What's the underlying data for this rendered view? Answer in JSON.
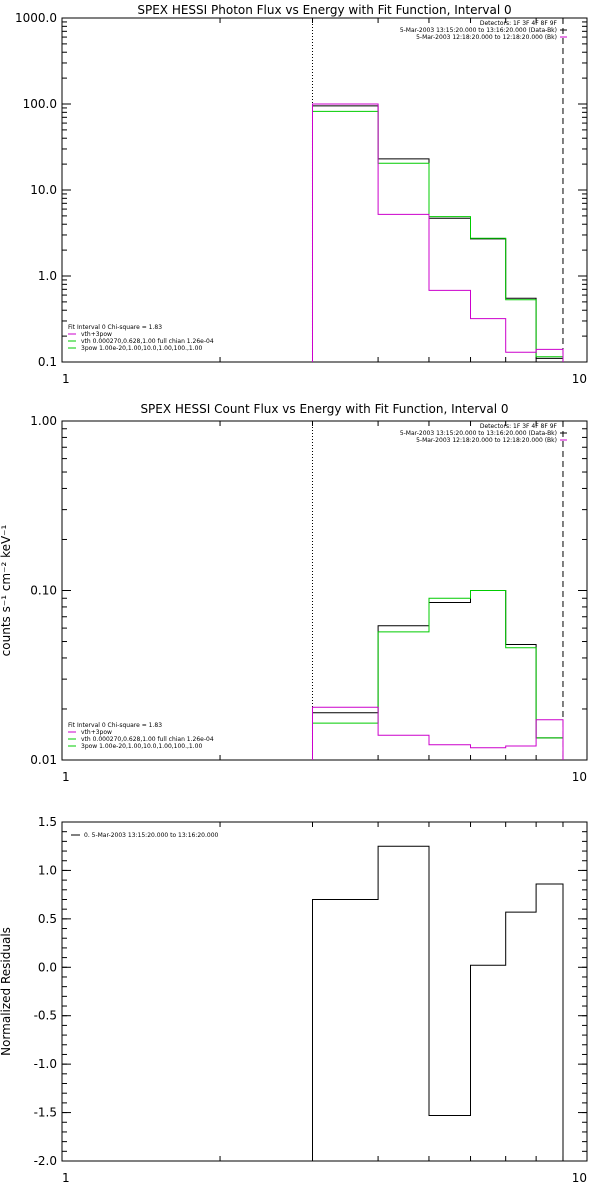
{
  "chart_data": [
    {
      "type": "line",
      "title": "SPEX HESSI Photon Flux vs Energy with Fit Function, Interval 0",
      "xlabel": "",
      "ylabel": "",
      "xscale": "log",
      "yscale": "log",
      "xlim": [
        1,
        10
      ],
      "ylim": [
        0.1,
        1000
      ],
      "xticks": [
        1,
        10
      ],
      "xtick_labels": [
        "1",
        "10"
      ],
      "yticks": [
        0.1,
        1,
        10,
        100,
        1000
      ],
      "ytick_labels": [
        "0.1",
        "1.0",
        "10.0",
        "100.0",
        "1000.0"
      ],
      "vlines": [
        {
          "x": 3,
          "style": "dotted"
        },
        {
          "x": 9,
          "style": "dashed"
        }
      ],
      "header_text": [
        {
          "text": "Detectors: 1F 3F 4F 8F 9F",
          "color": ""
        },
        {
          "text": "5-Mar-2003 13:15:20.000 to 13:16:20.000 (Data-Bk)",
          "color": "#000000"
        },
        {
          "text": "5-Mar-2003 12:18:20.000 to 12:18:20.000 (Bk)",
          "color": "#cc00cc"
        }
      ],
      "legend": {
        "title": "Fit Interval 0   Chi-square = 1.83",
        "placement": "bottom-left",
        "entries": [
          {
            "text": "vth+3pow",
            "color": "#cc00cc"
          },
          {
            "text": "vth 0.000270,0.628,1.00  full chian 1.26e-04",
            "color": "#00cc00"
          },
          {
            "text": "3pow 1.00e-20,1.00,10.0,1.00,100.,1.00",
            "color": "#00cc00"
          }
        ]
      },
      "edges": [
        3,
        4,
        5,
        6,
        7,
        8,
        9
      ],
      "series": [
        {
          "color": "#000000",
          "values": [
            95,
            23,
            4.7,
            2.7,
            0.55,
            0.11
          ]
        },
        {
          "color": "#00cc00",
          "values": [
            82,
            20.5,
            4.9,
            2.75,
            0.53,
            0.115
          ]
        },
        {
          "color": "#cc00cc",
          "values": [
            100,
            5.2,
            0.68,
            0.32,
            0.13,
            0.14
          ]
        }
      ]
    },
    {
      "type": "line",
      "title": "SPEX HESSI Count Flux vs Energy with Fit Function, Interval 0",
      "xlabel": "",
      "ylabel": "counts s⁻¹ cm⁻² keV⁻¹",
      "xscale": "log",
      "yscale": "log",
      "xlim": [
        1,
        10
      ],
      "ylim": [
        0.01,
        1
      ],
      "xticks": [
        1,
        10
      ],
      "xtick_labels": [
        "1",
        "10"
      ],
      "yticks": [
        0.01,
        0.1,
        1
      ],
      "ytick_labels": [
        "0.01",
        "0.10",
        "1.00"
      ],
      "vlines": [
        {
          "x": 3,
          "style": "dotted"
        },
        {
          "x": 9,
          "style": "dashed"
        }
      ],
      "header_text": [
        {
          "text": "Detectors: 1F 3F 4F 8F 9F",
          "color": ""
        },
        {
          "text": "5-Mar-2003 13:15:20.000 to 13:16:20.000 (Data-Bk)",
          "color": "#000000"
        },
        {
          "text": "5-Mar-2003 12:18:20.000 to 12:18:20.000 (Bk)",
          "color": "#cc00cc"
        }
      ],
      "legend": {
        "title": "Fit Interval 0   Chi-square = 1.83",
        "placement": "bottom-left",
        "entries": [
          {
            "text": "vth+3pow",
            "color": "#cc00cc"
          },
          {
            "text": "vth 0.000270,0.628,1.00  full chian 1.26e-04",
            "color": "#00cc00"
          },
          {
            "text": "3pow 1.00e-20,1.00,10.0,1.00,100.,1.00",
            "color": "#00cc00"
          }
        ]
      },
      "edges": [
        3,
        4,
        5,
        6,
        7,
        8,
        9
      ],
      "series": [
        {
          "color": "#000000",
          "values": [
            0.019,
            0.062,
            0.085,
            0.1,
            0.048,
            0.0135
          ]
        },
        {
          "color": "#00cc00",
          "values": [
            0.0165,
            0.057,
            0.09,
            0.1,
            0.046,
            0.0135
          ]
        },
        {
          "color": "#cc00cc",
          "values": [
            0.0205,
            0.014,
            0.0123,
            0.0118,
            0.0121,
            0.0173
          ]
        }
      ]
    },
    {
      "type": "line",
      "title": "",
      "xlabel": "",
      "ylabel": "Normalized Residuals",
      "xscale": "log",
      "yscale": "linear",
      "xlim": [
        1,
        10
      ],
      "ylim": [
        -2,
        1.5
      ],
      "xticks": [
        1,
        10
      ],
      "xtick_labels": [
        "1",
        "10"
      ],
      "yticks": [
        -2,
        -1.5,
        -1,
        -0.5,
        0,
        0.5,
        1,
        1.5
      ],
      "ytick_labels": [
        "-2.0",
        "-1.5",
        "-1.0",
        "-0.5",
        "0.0",
        "0.5",
        "1.0",
        "1.5"
      ],
      "legend": {
        "placement": "top-left",
        "entries": [
          {
            "text": "0.  5-Mar-2003 13:15:20.000 to 13:16:20.000",
            "color": "#000000"
          }
        ]
      },
      "edges": [
        3,
        4,
        5,
        6,
        7,
        8,
        9
      ],
      "series": [
        {
          "color": "#000000",
          "values": [
            0.7,
            1.25,
            -1.53,
            0.02,
            0.57,
            0.86
          ]
        }
      ]
    }
  ]
}
